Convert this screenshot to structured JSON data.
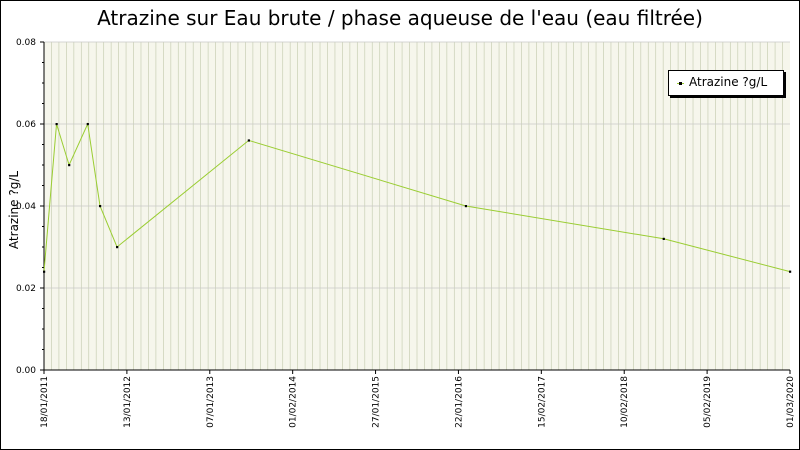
{
  "chart_data": {
    "type": "line",
    "title": "Atrazine sur Eau brute / phase aqueuse de l'eau (eau filtrée)",
    "xlabel": "",
    "ylabel": "Atrazine ?g/L",
    "x_range": [
      "2011-01-18",
      "2020-03-01"
    ],
    "ylim": [
      0,
      0.08
    ],
    "y_ticks": [
      "0.00",
      "0.02",
      "0.04",
      "0.06",
      "0.08"
    ],
    "x_ticks": [
      "18/01/2011",
      "13/01/2012",
      "07/01/2013",
      "01/02/2014",
      "27/01/2015",
      "22/01/2016",
      "15/02/2017",
      "10/02/2018",
      "05/02/2019",
      "01/03/2020"
    ],
    "grid": true,
    "legend_position": "top-right",
    "series": [
      {
        "name": "Atrazine ?g/L",
        "color": "#9acd32",
        "points": [
          {
            "x": "2011-01-18",
            "y": 0.024
          },
          {
            "x": "2011-03-15",
            "y": 0.06
          },
          {
            "x": "2011-05-10",
            "y": 0.05
          },
          {
            "x": "2011-08-01",
            "y": 0.06
          },
          {
            "x": "2011-09-25",
            "y": 0.04
          },
          {
            "x": "2011-12-10",
            "y": 0.03
          },
          {
            "x": "2013-07-20",
            "y": 0.056
          },
          {
            "x": "2016-03-15",
            "y": 0.04
          },
          {
            "x": "2018-08-15",
            "y": 0.032
          },
          {
            "x": "2020-03-01",
            "y": 0.024
          }
        ]
      }
    ]
  }
}
